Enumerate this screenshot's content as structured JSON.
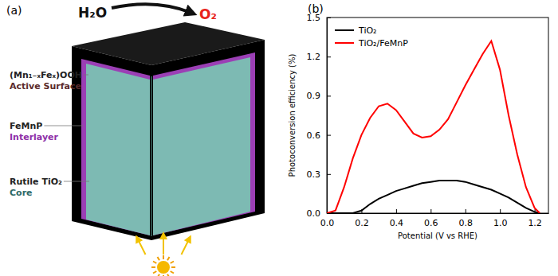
{
  "diagram": {
    "panel_label": "(a)",
    "reactant": "H₂O",
    "product": "O₂",
    "layers": [
      {
        "name": "(Mn₁₋ₓFeₓ)OOH",
        "role": "Active Surface"
      },
      {
        "name": "FeMnP",
        "role": "Interlayer"
      },
      {
        "name": "Rutile TiO₂",
        "role": "Core"
      }
    ]
  },
  "chart_data": {
    "type": "line",
    "title": "(b)",
    "x_label": "Potential (V vs RHE)",
    "y_label": "Photoconversion efficiency (%)",
    "x": [
      0,
      0.05,
      0.1,
      0.15,
      0.2,
      0.25,
      0.3,
      0.35,
      0.4,
      0.45,
      0.5,
      0.55,
      0.6,
      0.65,
      0.7,
      0.75,
      0.8,
      0.85,
      0.9,
      0.95,
      1.0,
      1.05,
      1.1,
      1.15,
      1.2,
      1.23
    ],
    "series": [
      {
        "name": "TiO₂",
        "color": "#000000",
        "values": [
          0,
          0,
          0,
          0,
          0.02,
          0.07,
          0.11,
          0.14,
          0.17,
          0.19,
          0.21,
          0.23,
          0.24,
          0.25,
          0.25,
          0.25,
          0.24,
          0.22,
          0.2,
          0.18,
          0.15,
          0.12,
          0.08,
          0.04,
          0.01,
          0
        ]
      },
      {
        "name": "TiO₂/FeMnP",
        "color": "#ff0000",
        "values": [
          0,
          0.02,
          0.2,
          0.42,
          0.6,
          0.73,
          0.82,
          0.84,
          0.79,
          0.7,
          0.61,
          0.58,
          0.59,
          0.64,
          0.72,
          0.85,
          0.98,
          1.1,
          1.22,
          1.32,
          1.1,
          0.75,
          0.45,
          0.2,
          0.04,
          0
        ]
      }
    ],
    "xlim": [
      0,
      1.28
    ],
    "xticks": [
      {
        "value": 0,
        "label": "0.0"
      },
      0.2,
      0.4,
      0.6,
      0.8,
      {
        "value": 1,
        "label": "1.0"
      },
      1.2
    ],
    "ylim": [
      0,
      1.5
    ],
    "yticks": [
      {
        "value": 0,
        "label": "0.0"
      },
      0.3,
      0.6,
      0.9,
      1.2,
      1.5
    ],
    "grid": false,
    "legend": "upper left"
  }
}
